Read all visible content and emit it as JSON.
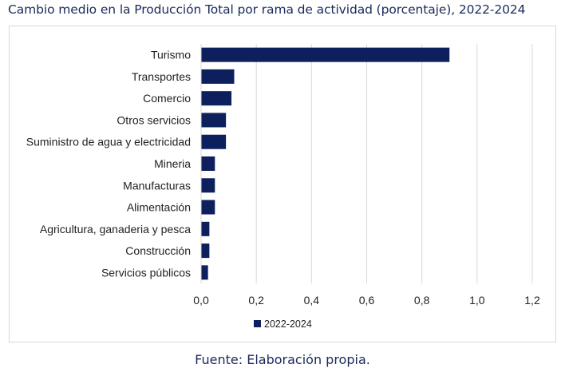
{
  "title": "Cambio medio en la Producción Total por rama de actividad (porcentaje), 2022-2024",
  "source": "Fuente: Elaboración propia.",
  "colors": {
    "bar": "#0d1f5c",
    "grid": "#d9d9d9",
    "text": "#222222",
    "title": "#1a2a5a"
  },
  "chart_data": {
    "type": "bar",
    "orientation": "horizontal",
    "categories": [
      "Turismo",
      "Transportes",
      "Comercio",
      "Otros servicios",
      "Suministro de agua y electricidad",
      "Mineria",
      "Manufacturas",
      "Alimentación",
      "Agricultura, ganaderia y pesca",
      "Construcción",
      "Servicios públicos"
    ],
    "series": [
      {
        "name": "2022-2024",
        "values": [
          0.9,
          0.12,
          0.11,
          0.09,
          0.09,
          0.05,
          0.05,
          0.05,
          0.03,
          0.03,
          0.025
        ]
      }
    ],
    "xlim": [
      0,
      1.2
    ],
    "xticks": [
      "0,0",
      "0,2",
      "0,4",
      "0,6",
      "0,8",
      "1,0",
      "1,2"
    ],
    "grid": "vertical",
    "legend": "bottom"
  }
}
